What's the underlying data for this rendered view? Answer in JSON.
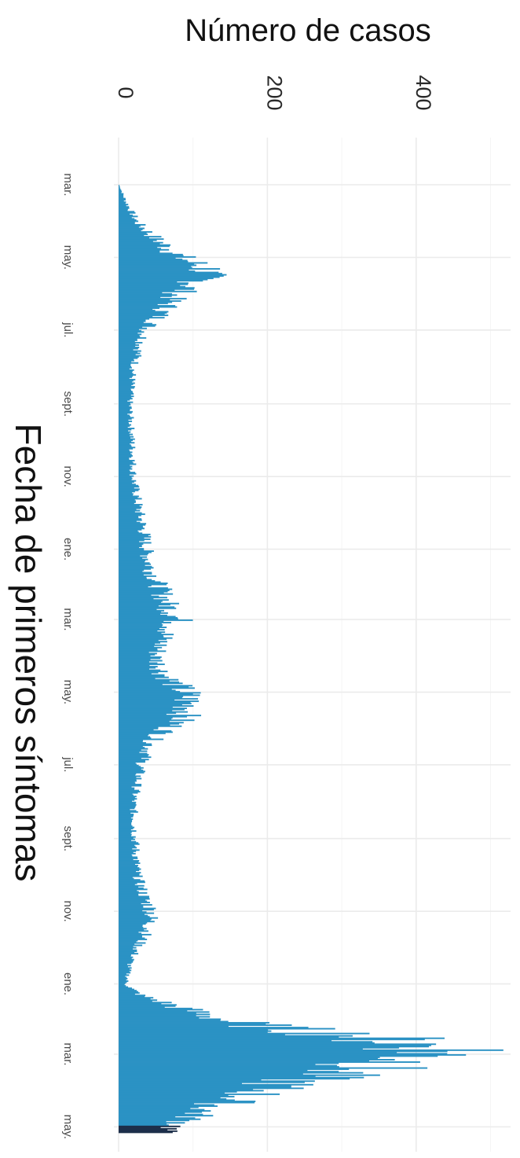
{
  "chart_data": {
    "type": "bar",
    "orientation": "rotated-90-clockwise",
    "ylabel": "Número de casos",
    "xlabel": "Fecha de primeros síntomas",
    "ylim": [
      0,
      520
    ],
    "yticks": [
      0,
      200,
      400
    ],
    "x_tick_labels": [
      "mar.",
      "may.",
      "jul.",
      "sept.",
      "nov.",
      "ene.",
      "mar.",
      "may.",
      "jul.",
      "sept.",
      "nov.",
      "ene.",
      "mar.",
      "may."
    ],
    "x_tick_dates": [
      "2020-03-01",
      "2020-05-01",
      "2020-07-01",
      "2020-09-01",
      "2020-11-01",
      "2021-01-01",
      "2021-03-01",
      "2021-05-01",
      "2021-07-01",
      "2021-09-01",
      "2021-11-01",
      "2022-01-01",
      "2022-03-01",
      "2022-05-01"
    ],
    "x_range": [
      "2020-03-01",
      "2022-05-10"
    ],
    "grid": true,
    "bar_color": "#2b92c4",
    "last_bar_color": "#1d2f4a",
    "series": [
      {
        "x": [
          "2020-03-01",
          "2020-03-15",
          "2020-04-01",
          "2020-04-15",
          "2020-05-01",
          "2020-05-10",
          "2020-05-20",
          "2020-06-01",
          "2020-06-15",
          "2020-07-01",
          "2020-07-15",
          "2020-08-01",
          "2020-09-01",
          "2020-10-01",
          "2020-11-01",
          "2020-12-01",
          "2020-12-20",
          "2021-01-05",
          "2021-01-20",
          "2021-02-01",
          "2021-02-15",
          "2021-03-01",
          "2021-03-15",
          "2021-04-01",
          "2021-04-15",
          "2021-05-01",
          "2021-05-15",
          "2021-05-25",
          "2021-06-10",
          "2021-07-01",
          "2021-08-01",
          "2021-09-01",
          "2021-10-01",
          "2021-10-20",
          "2021-11-01",
          "2021-11-15",
          "2021-12-01",
          "2021-12-15",
          "2022-01-01",
          "2022-01-10",
          "2022-01-20",
          "2022-02-01",
          "2022-02-05",
          "2022-02-15",
          "2022-02-25",
          "2022-03-05",
          "2022-03-15",
          "2022-03-25",
          "2022-04-05",
          "2022-04-15",
          "2022-04-25",
          "2022-05-05"
        ],
        "values": [
          1,
          10,
          25,
          50,
          85,
          120,
          110,
          75,
          60,
          35,
          28,
          20,
          15,
          18,
          20,
          28,
          35,
          38,
          45,
          55,
          65,
          80,
          60,
          50,
          60,
          90,
          95,
          80,
          45,
          30,
          20,
          22,
          25,
          35,
          45,
          40,
          25,
          15,
          10,
          30,
          80,
          150,
          200,
          350,
          450,
          400,
          300,
          220,
          170,
          120,
          90,
          60
        ]
      }
    ]
  }
}
